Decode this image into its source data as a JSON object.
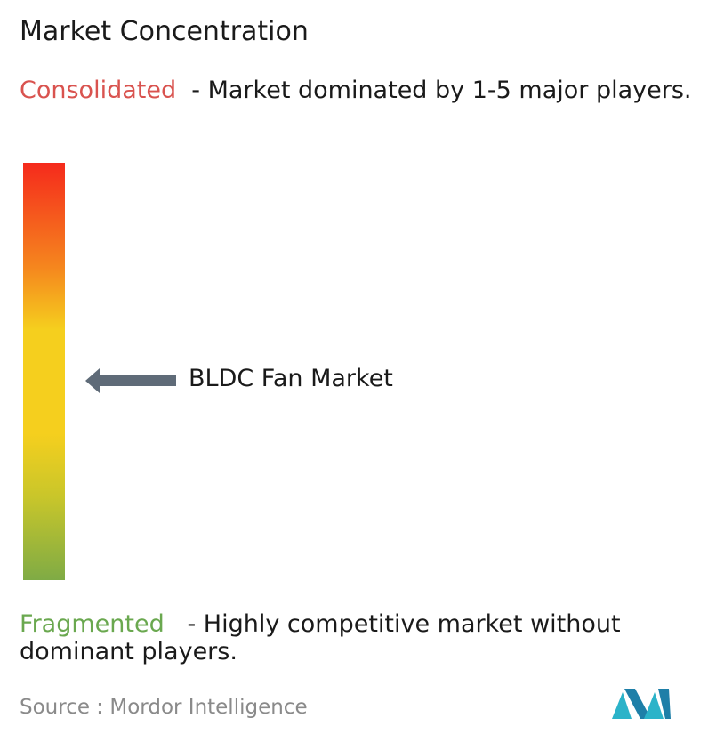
{
  "header": {
    "title": "Market Concentration"
  },
  "consolidated": {
    "label": "Consolidated",
    "description": "- Market dominated by 1-5 major players."
  },
  "marker": {
    "label": "BLDC Fan Market"
  },
  "fragmented": {
    "label": "Fragmented",
    "description": "- Highly competitive market without dominant players."
  },
  "source": {
    "label": "Source :",
    "name": "Mordor Intelligence"
  }
}
